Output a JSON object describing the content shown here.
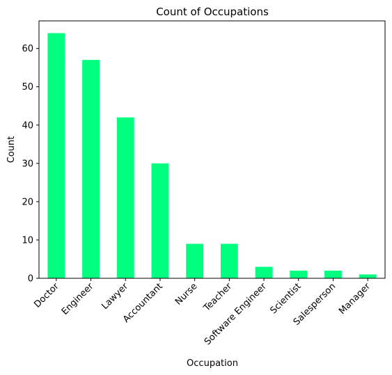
{
  "chart_data": {
    "type": "bar",
    "title": "Count of Occupations",
    "xlabel": "Occupation",
    "ylabel": "Count",
    "categories": [
      "Doctor",
      "Engineer",
      "Lawyer",
      "Accountant",
      "Nurse",
      "Teacher",
      "Software Engineer",
      "Scientist",
      "Salesperson",
      "Manager"
    ],
    "values": [
      64,
      57,
      42,
      30,
      9,
      9,
      3,
      2,
      2,
      1
    ],
    "ylim": [
      0,
      67.2
    ],
    "yticks": [
      0,
      10,
      20,
      30,
      40,
      50,
      60
    ],
    "bar_color": "#00ff7f",
    "grid": false,
    "legend": "none"
  }
}
